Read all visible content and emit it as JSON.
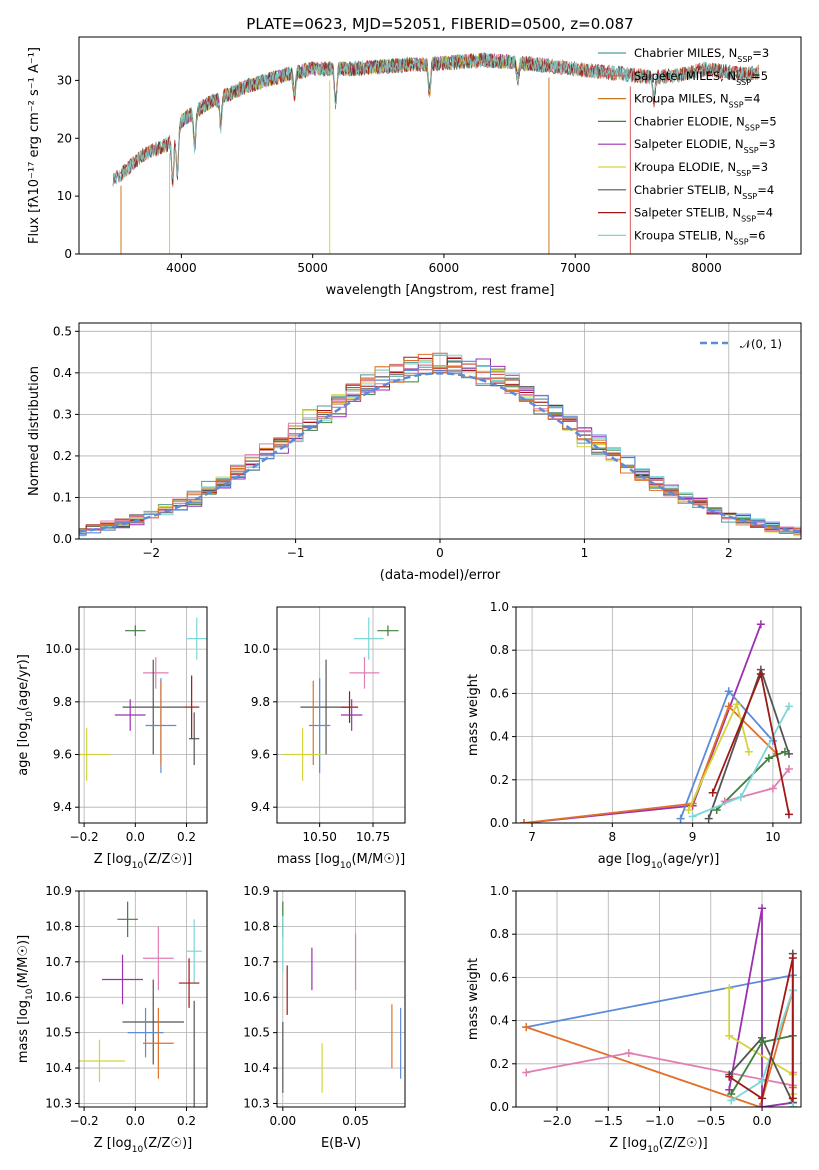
{
  "chart_data": [
    {
      "id": "spectrum",
      "type": "line",
      "title": "PLATE=0623, MJD=52051, FIBERID=0500, z=0.087",
      "xlabel": "wavelength [Angstrom, rest frame]",
      "ylabel": "Flux [fλ10⁻¹⁷ erg cm⁻² s⁻¹ A⁻¹]",
      "xlim": [
        3220,
        8720
      ],
      "ylim": [
        0,
        37.5
      ],
      "xticks": [
        "4000",
        "5000",
        "6000",
        "7000",
        "8000"
      ],
      "yticks": [
        "0",
        "10",
        "20",
        "30"
      ],
      "grid": false,
      "legend_position": "upper-right",
      "continuum": [
        [
          3500,
          13
        ],
        [
          3700,
          17
        ],
        [
          3900,
          19
        ],
        [
          4000,
          23
        ],
        [
          4200,
          26
        ],
        [
          4500,
          29
        ],
        [
          4800,
          31
        ],
        [
          5000,
          32
        ],
        [
          5300,
          32
        ],
        [
          5600,
          32.5
        ],
        [
          6000,
          33
        ],
        [
          6300,
          33.5
        ],
        [
          6600,
          33
        ],
        [
          6800,
          32.5
        ],
        [
          7000,
          32
        ],
        [
          7200,
          31.5
        ],
        [
          7400,
          31
        ],
        [
          7600,
          30.5
        ],
        [
          7800,
          31
        ],
        [
          8000,
          32
        ],
        [
          8300,
          31
        ],
        [
          8400,
          31.5
        ]
      ],
      "absorption": [
        [
          3934,
          8
        ],
        [
          3969,
          8
        ],
        [
          4101,
          6
        ],
        [
          4300,
          5
        ],
        [
          4861,
          4
        ],
        [
          5175,
          6
        ],
        [
          5890,
          5
        ],
        [
          6563,
          3
        ],
        [
          7600,
          4
        ]
      ],
      "series": [
        {
          "name": "Chabrier MILES, N_SSP=3",
          "color": "#4e9a9a",
          "start": 3540,
          "end": 8400
        },
        {
          "name": "Salpeter MILES, N_SSP=5",
          "color": "#d65c5c",
          "start": 3540,
          "end": 8400
        },
        {
          "name": "Kroupa MILES, N_SSP=4",
          "color": "#cc7722",
          "start": 3540,
          "end": 8400
        },
        {
          "name": "Chabrier ELODIE, N_SSP=5",
          "color": "#3f7f3f",
          "start": 4000,
          "end": 6800
        },
        {
          "name": "Salpeter ELODIE, N_SSP=3",
          "color": "#9b30b0",
          "start": 4000,
          "end": 6800
        },
        {
          "name": "Kroupa ELODIE, N_SSP=3",
          "color": "#d4d43a",
          "start": 4000,
          "end": 6800
        },
        {
          "name": "Chabrier STELIB, N_SSP=4",
          "color": "#555555",
          "start": 3480,
          "end": 8400
        },
        {
          "name": "Salpeter STELIB, N_SSP=4",
          "color": "#a01818",
          "start": 3480,
          "end": 8400
        },
        {
          "name": "Kroupa STELIB, N_SSP=6",
          "color": "#7fd6d6",
          "start": 3480,
          "end": 8400
        }
      ],
      "legend": [
        {
          "label": "Chabrier MILES, N",
          "sub": "SSP",
          "tail": "=3"
        },
        {
          "label": "Salpeter MILES, N",
          "sub": "SSP",
          "tail": "=5"
        },
        {
          "label": "Kroupa MILES, N",
          "sub": "SSP",
          "tail": "=4"
        },
        {
          "label": "Chabrier ELODIE, N",
          "sub": "SSP",
          "tail": "=5"
        },
        {
          "label": "Salpeter ELODIE, N",
          "sub": "SSP",
          "tail": "=3"
        },
        {
          "label": "Kroupa ELODIE, N",
          "sub": "SSP",
          "tail": "=3"
        },
        {
          "label": "Chabrier STELIB, N",
          "sub": "SSP",
          "tail": "=4"
        },
        {
          "label": "Salpeter STELIB, N",
          "sub": "SSP",
          "tail": "=4"
        },
        {
          "label": "Kroupa STELIB, N",
          "sub": "SSP",
          "tail": "=6"
        }
      ]
    },
    {
      "id": "residuals",
      "type": "line",
      "xlabel": "(data-model)/error",
      "ylabel": "Normed distribution",
      "xlim": [
        -2.5,
        2.5
      ],
      "ylim": [
        0,
        0.52
      ],
      "xticks": [
        "−2",
        "−1",
        "0",
        "1",
        "2"
      ],
      "yticks": [
        "0.0",
        "0.1",
        "0.2",
        "0.3",
        "0.4",
        "0.5"
      ],
      "grid": true,
      "legend_position": "upper-right",
      "legend_label": "𝒩(0, 1)",
      "reference_curve": {
        "name": "N(0,1)",
        "mu": 0,
        "sigma": 1,
        "color": "#5b8bd9"
      },
      "bin_width": 0.1,
      "histogram_colors": [
        "#4e9a9a",
        "#d65c5c",
        "#cc7722",
        "#3f7f3f",
        "#9b30b0",
        "#d4d43a",
        "#555555",
        "#a01818",
        "#7fd6d6",
        "#5b8bd9",
        "#e07fb0",
        "#e0702a"
      ]
    },
    {
      "id": "age-vs-Z",
      "type": "scatter",
      "xlabel": "Z [log10(Z/Z☉)]",
      "ylabel": "age  [log10(age/yr)]",
      "xlim": [
        -0.22,
        0.28
      ],
      "ylim": [
        9.34,
        10.16
      ],
      "xticks": [
        "−0.2",
        "0.0",
        "0.2"
      ],
      "yticks": [
        "9.4",
        "9.6",
        "9.8",
        "10.0"
      ],
      "grid": true,
      "points": [
        {
          "x": 0.0,
          "y": 10.07,
          "xerr": 0.04,
          "yerr": 0.02,
          "color": "#3f7f3f"
        },
        {
          "x": 0.24,
          "y": 10.04,
          "xerr": 0.04,
          "yerr": 0.08,
          "color": "#7fd6d6"
        },
        {
          "x": 0.08,
          "y": 9.91,
          "xerr": 0.05,
          "yerr": 0.06,
          "color": "#e07fb0"
        },
        {
          "x": 0.07,
          "y": 9.78,
          "xerr": 0.12,
          "yerr": 0.18,
          "color": "#555555"
        },
        {
          "x": 0.22,
          "y": 9.78,
          "xerr": 0.03,
          "yerr": 0.12,
          "color": "#a01818"
        },
        {
          "x": -0.02,
          "y": 9.75,
          "xerr": 0.06,
          "yerr": 0.06,
          "color": "#9b30b0"
        },
        {
          "x": 0.1,
          "y": 9.71,
          "xerr": 0.06,
          "yerr": 0.18,
          "color": "#5b8bd9"
        },
        {
          "x": 0.1,
          "y": 9.72,
          "xerr": 0.0,
          "yerr": 0.16,
          "color": "#e0702a"
        },
        {
          "x": -0.19,
          "y": 9.6,
          "xerr": 0.09,
          "yerr": 0.1,
          "color": "#d4d43a"
        },
        {
          "x": 0.23,
          "y": 9.66,
          "xerr": 0.02,
          "yerr": 0.1,
          "color": "#555555"
        }
      ]
    },
    {
      "id": "age-vs-mass",
      "type": "scatter",
      "xlabel": "mass [log10(M/M☉)]",
      "ylabel": "",
      "xlim": [
        10.3,
        10.9
      ],
      "ylim": [
        9.34,
        10.16
      ],
      "xticks": [
        "10.50",
        "10.75"
      ],
      "yticks": [
        "9.4",
        "9.6",
        "9.8",
        "10.0"
      ],
      "grid": true,
      "points": [
        {
          "x": 10.82,
          "y": 10.07,
          "xerr": 0.05,
          "yerr": 0.02,
          "color": "#3f7f3f"
        },
        {
          "x": 10.73,
          "y": 10.04,
          "xerr": 0.07,
          "yerr": 0.08,
          "color": "#7fd6d6"
        },
        {
          "x": 10.71,
          "y": 9.91,
          "xerr": 0.07,
          "yerr": 0.06,
          "color": "#e07fb0"
        },
        {
          "x": 10.53,
          "y": 9.78,
          "xerr": 0.12,
          "yerr": 0.18,
          "color": "#555555"
        },
        {
          "x": 10.64,
          "y": 9.78,
          "xerr": 0.04,
          "yerr": 0.06,
          "color": "#a01818"
        },
        {
          "x": 10.65,
          "y": 9.75,
          "xerr": 0.05,
          "yerr": 0.06,
          "color": "#9b30b0"
        },
        {
          "x": 10.5,
          "y": 9.71,
          "xerr": 0.05,
          "yerr": 0.18,
          "color": "#5b8bd9"
        },
        {
          "x": 10.47,
          "y": 9.72,
          "xerr": 0.0,
          "yerr": 0.16,
          "color": "#e0702a"
        },
        {
          "x": 10.42,
          "y": 9.6,
          "xerr": 0.09,
          "yerr": 0.1,
          "color": "#d4d43a"
        }
      ]
    },
    {
      "id": "massweight-vs-age",
      "type": "line",
      "xlabel": "age  [log10(age/yr)]",
      "ylabel": "mass weight",
      "xlim": [
        6.8,
        10.35
      ],
      "ylim": [
        0,
        1.0
      ],
      "xticks": [
        "7",
        "8",
        "9",
        "10"
      ],
      "yticks": [
        "0.0",
        "0.2",
        "0.4",
        "0.6",
        "0.8",
        "1.0"
      ],
      "grid": true,
      "series": [
        {
          "color": "#9b30b0",
          "x": [
            6.9,
            9.0,
            9.85
          ],
          "y": [
            0.0,
            0.08,
            0.92
          ]
        },
        {
          "color": "#5b8bd9",
          "x": [
            8.85,
            9.45,
            10.0
          ],
          "y": [
            0.02,
            0.61,
            0.38
          ]
        },
        {
          "color": "#e0702a",
          "x": [
            6.9,
            9.0,
            9.45,
            10.05
          ],
          "y": [
            0.0,
            0.09,
            0.54,
            0.32
          ]
        },
        {
          "color": "#d4d43a",
          "x": [
            8.95,
            9.55,
            9.7
          ],
          "y": [
            0.06,
            0.55,
            0.33
          ]
        },
        {
          "color": "#555555",
          "x": [
            9.2,
            9.85,
            10.2
          ],
          "y": [
            0.02,
            0.71,
            0.32
          ]
        },
        {
          "color": "#3f7f3f",
          "x": [
            9.3,
            9.95,
            10.15
          ],
          "y": [
            0.06,
            0.3,
            0.33
          ]
        },
        {
          "color": "#e07fb0",
          "x": [
            9.4,
            10.0,
            10.2
          ],
          "y": [
            0.1,
            0.16,
            0.25
          ]
        },
        {
          "color": "#7fd6d6",
          "x": [
            9.0,
            9.6,
            10.2
          ],
          "y": [
            0.03,
            0.12,
            0.54
          ]
        },
        {
          "color": "#a01818",
          "x": [
            9.25,
            9.85,
            10.2
          ],
          "y": [
            0.14,
            0.69,
            0.04
          ]
        }
      ]
    },
    {
      "id": "mass-vs-Z",
      "type": "scatter",
      "xlabel": "Z [log10(Z/Z☉)]",
      "ylabel": "mass [log10(M/M☉)]",
      "xlim": [
        -0.22,
        0.28
      ],
      "ylim": [
        10.29,
        10.9
      ],
      "xticks": [
        "−0.2",
        "0.0",
        "0.2"
      ],
      "yticks": [
        "10.3",
        "10.4",
        "10.5",
        "10.6",
        "10.7",
        "10.8",
        "10.9"
      ],
      "grid": true,
      "points": [
        {
          "x": -0.03,
          "y": 10.82,
          "xerr": 0.04,
          "yerr": 0.05,
          "color": "#3f7f3f"
        },
        {
          "x": 0.23,
          "y": 10.73,
          "xerr": 0.03,
          "yerr": 0.09,
          "color": "#7fd6d6"
        },
        {
          "x": 0.09,
          "y": 10.71,
          "xerr": 0.06,
          "yerr": 0.09,
          "color": "#e07fb0"
        },
        {
          "x": -0.05,
          "y": 10.65,
          "xerr": 0.08,
          "yerr": 0.07,
          "color": "#9b30b0"
        },
        {
          "x": 0.21,
          "y": 10.64,
          "xerr": 0.04,
          "yerr": 0.07,
          "color": "#a01818"
        },
        {
          "x": 0.07,
          "y": 10.53,
          "xerr": 0.12,
          "yerr": 0.12,
          "color": "#555555"
        },
        {
          "x": 0.04,
          "y": 10.5,
          "xerr": 0.07,
          "yerr": 0.07,
          "color": "#5b8bd9"
        },
        {
          "x": 0.09,
          "y": 10.47,
          "xerr": 0.06,
          "yerr": 0.1,
          "color": "#e0702a"
        },
        {
          "x": -0.14,
          "y": 10.42,
          "xerr": 0.1,
          "yerr": 0.06,
          "color": "#d4d43a"
        },
        {
          "x": 0.23,
          "y": 10.41,
          "xerr": 0.0,
          "yerr": 0.18,
          "color": "#555555"
        }
      ]
    },
    {
      "id": "mass-vs-ebv",
      "type": "scatter",
      "xlabel": "E(B-V)",
      "ylabel": "",
      "xlim": [
        -0.004,
        0.084
      ],
      "ylim": [
        10.29,
        10.9
      ],
      "xticks": [
        "0.00",
        "0.05"
      ],
      "yticks": [
        "10.3",
        "10.4",
        "10.5",
        "10.6",
        "10.7",
        "10.8",
        "10.9"
      ],
      "grid": true,
      "points": [
        {
          "x": 0.0,
          "y": 10.82,
          "yerr": 0.05,
          "color": "#3f7f3f"
        },
        {
          "x": 0.0,
          "y": 10.75,
          "yerr": 0.08,
          "color": "#7fd6d6"
        },
        {
          "x": 0.05,
          "y": 10.7,
          "yerr": 0.08,
          "color": "#e07fb0"
        },
        {
          "x": 0.02,
          "y": 10.68,
          "yerr": 0.06,
          "color": "#9b30b0"
        },
        {
          "x": 0.003,
          "y": 10.62,
          "yerr": 0.07,
          "color": "#a01818"
        },
        {
          "x": 0.0,
          "y": 10.43,
          "yerr": 0.1,
          "color": "#555555"
        },
        {
          "x": 0.081,
          "y": 10.47,
          "yerr": 0.1,
          "color": "#5b8bd9"
        },
        {
          "x": 0.075,
          "y": 10.49,
          "yerr": 0.09,
          "color": "#e0702a"
        },
        {
          "x": 0.027,
          "y": 10.4,
          "yerr": 0.07,
          "color": "#d4d43a"
        }
      ]
    },
    {
      "id": "massweight-vs-Z",
      "type": "line",
      "xlabel": "Z [log10(Z/Z☉)]",
      "ylabel": "mass weight",
      "xlim": [
        -2.4,
        0.38
      ],
      "ylim": [
        0,
        1.0
      ],
      "xticks": [
        "−2.0",
        "−1.5",
        "−1.0",
        "−0.5",
        "0.0"
      ],
      "yticks": [
        "0.0",
        "0.2",
        "0.4",
        "0.6",
        "0.8",
        "1.0"
      ],
      "grid": true,
      "series": [
        {
          "color": "#5b8bd9",
          "x": [
            -2.3,
            0.3,
            0.3
          ],
          "y": [
            0.37,
            0.61,
            0.02
          ]
        },
        {
          "color": "#e0702a",
          "x": [
            -2.3,
            -0.02,
            0.3,
            0.3
          ],
          "y": [
            0.37,
            0.0,
            0.54,
            0.09
          ]
        },
        {
          "color": "#e07fb0",
          "x": [
            -2.3,
            -1.3,
            0.3,
            0.3
          ],
          "y": [
            0.16,
            0.25,
            0.1,
            0.16
          ]
        },
        {
          "color": "#9b30b0",
          "x": [
            -0.32,
            0.0,
            0.0,
            0.3
          ],
          "y": [
            0.08,
            0.92,
            0.0,
            0.02
          ]
        },
        {
          "color": "#d4d43a",
          "x": [
            -0.32,
            -0.32,
            0.3,
            0.3
          ],
          "y": [
            0.55,
            0.33,
            0.15,
            0.06
          ]
        },
        {
          "color": "#555555",
          "x": [
            -0.32,
            0.0,
            0.3,
            0.3
          ],
          "y": [
            0.15,
            0.32,
            0.02,
            0.71
          ]
        },
        {
          "color": "#3f7f3f",
          "x": [
            -0.3,
            0.0,
            0.3,
            0.3
          ],
          "y": [
            0.06,
            0.3,
            0.33,
            0.0
          ]
        },
        {
          "color": "#7fd6d6",
          "x": [
            -0.3,
            0.0,
            0.3,
            0.3
          ],
          "y": [
            0.03,
            0.12,
            0.54,
            0.0
          ]
        },
        {
          "color": "#a01818",
          "x": [
            -0.32,
            0.0,
            0.3,
            0.3
          ],
          "y": [
            0.14,
            0.04,
            0.69,
            0.04
          ]
        }
      ]
    }
  ]
}
